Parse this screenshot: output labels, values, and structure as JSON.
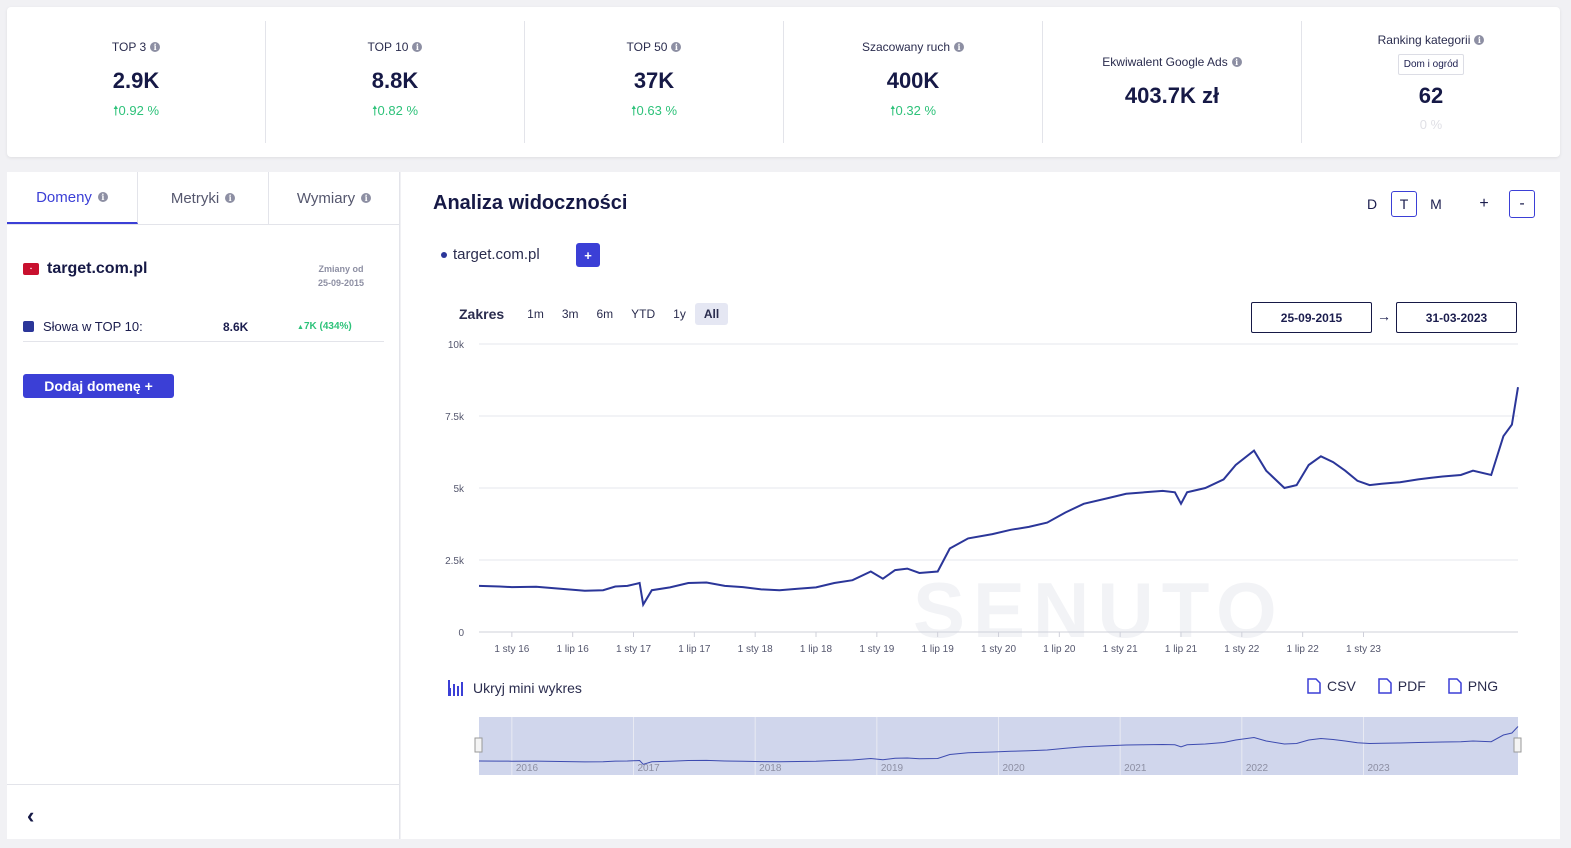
{
  "stats": [
    {
      "label": "TOP 3",
      "value": "2.9K",
      "change": "0.92 %"
    },
    {
      "label": "TOP 10",
      "value": "8.8K",
      "change": "0.82 %"
    },
    {
      "label": "TOP 50",
      "value": "37K",
      "change": "0.63 %"
    },
    {
      "label": "Szacowany ruch",
      "value": "400K",
      "change": "0.32 %"
    },
    {
      "label": "Ekwiwalent Google Ads",
      "value": "403.7K zł"
    },
    {
      "label": "Ranking kategorii",
      "badge": "Dom i ogród",
      "value": "62",
      "change": "0 %"
    }
  ],
  "tabs": [
    "Domeny",
    "Metryki",
    "Wymiary"
  ],
  "domain": {
    "name": "target.com.pl",
    "changes_label": "Zmiany od",
    "changes_date": "25-09-2015",
    "metric_label": "Słowa w TOP 10:",
    "metric_value": "8.6K",
    "metric_delta": "7K (434%)",
    "add_button": "Dodaj domenę +"
  },
  "main": {
    "title": "Analiza widoczności",
    "granularity": [
      "D",
      "T",
      "M"
    ],
    "granularity_selected": "T",
    "zoom_in": "+",
    "zoom_out": "-",
    "legend_item": "target.com.pl",
    "add_series": "+",
    "range_label": "Zakres",
    "range_options": [
      "1m",
      "3m",
      "6m",
      "YTD",
      "1y",
      "All"
    ],
    "range_selected": "All",
    "date_from": "25-09-2015",
    "date_arrow": "→",
    "date_to": "31-03-2023",
    "mini_toggle": "Ukryj mini wykres",
    "exports": [
      "CSV",
      "PDF",
      "PNG"
    ],
    "watermark": "SENUTO"
  },
  "chart_data": {
    "type": "line",
    "series": [
      {
        "name": "target.com.pl"
      }
    ],
    "ylim": [
      0,
      10000
    ],
    "yticks": [
      "0",
      "2.5k",
      "5k",
      "7.5k",
      "10k"
    ],
    "xticks": [
      "1 sty 16",
      "1 lip 16",
      "1 sty 17",
      "1 lip 17",
      "1 sty 18",
      "1 lip 18",
      "1 sty 19",
      "1 lip 19",
      "1 sty 20",
      "1 lip 20",
      "1 sty 21",
      "1 lip 21",
      "1 sty 22",
      "1 lip 22",
      "1 sty 23"
    ],
    "navigator_years": [
      "2016",
      "2017",
      "2018",
      "2019",
      "2020",
      "2021",
      "2022",
      "2023"
    ],
    "points": [
      [
        2015.73,
        1600
      ],
      [
        2015.9,
        1580
      ],
      [
        2016.0,
        1560
      ],
      [
        2016.2,
        1570
      ],
      [
        2016.4,
        1500
      ],
      [
        2016.6,
        1430
      ],
      [
        2016.75,
        1450
      ],
      [
        2016.85,
        1580
      ],
      [
        2016.95,
        1600
      ],
      [
        2017.05,
        1700
      ],
      [
        2017.08,
        950
      ],
      [
        2017.15,
        1450
      ],
      [
        2017.3,
        1550
      ],
      [
        2017.45,
        1700
      ],
      [
        2017.6,
        1720
      ],
      [
        2017.75,
        1600
      ],
      [
        2017.9,
        1560
      ],
      [
        2018.05,
        1480
      ],
      [
        2018.2,
        1450
      ],
      [
        2018.35,
        1500
      ],
      [
        2018.5,
        1550
      ],
      [
        2018.65,
        1700
      ],
      [
        2018.8,
        1800
      ],
      [
        2018.95,
        2100
      ],
      [
        2019.05,
        1850
      ],
      [
        2019.15,
        2150
      ],
      [
        2019.25,
        2200
      ],
      [
        2019.35,
        2050
      ],
      [
        2019.5,
        2100
      ],
      [
        2019.6,
        2900
      ],
      [
        2019.75,
        3250
      ],
      [
        2019.95,
        3400
      ],
      [
        2020.1,
        3550
      ],
      [
        2020.25,
        3650
      ],
      [
        2020.4,
        3800
      ],
      [
        2020.55,
        4150
      ],
      [
        2020.7,
        4450
      ],
      [
        2020.9,
        4650
      ],
      [
        2021.05,
        4800
      ],
      [
        2021.2,
        4850
      ],
      [
        2021.35,
        4900
      ],
      [
        2021.45,
        4850
      ],
      [
        2021.5,
        4450
      ],
      [
        2021.55,
        4850
      ],
      [
        2021.7,
        5000
      ],
      [
        2021.85,
        5300
      ],
      [
        2021.95,
        5800
      ],
      [
        2022.1,
        6300
      ],
      [
        2022.2,
        5600
      ],
      [
        2022.35,
        5000
      ],
      [
        2022.45,
        5100
      ],
      [
        2022.55,
        5800
      ],
      [
        2022.65,
        6100
      ],
      [
        2022.75,
        5900
      ],
      [
        2022.85,
        5600
      ],
      [
        2022.95,
        5250
      ],
      [
        2023.05,
        5100
      ],
      [
        2023.15,
        5150
      ],
      [
        2023.3,
        5200
      ],
      [
        2023.45,
        5300
      ],
      [
        2023.55,
        5350
      ],
      [
        2023.65,
        5400
      ],
      [
        2023.8,
        5450
      ],
      [
        2023.9,
        5600
      ],
      [
        2024.05,
        5450
      ],
      [
        2024.15,
        6800
      ],
      [
        2024.22,
        7200
      ],
      [
        2024.27,
        8500
      ]
    ]
  }
}
